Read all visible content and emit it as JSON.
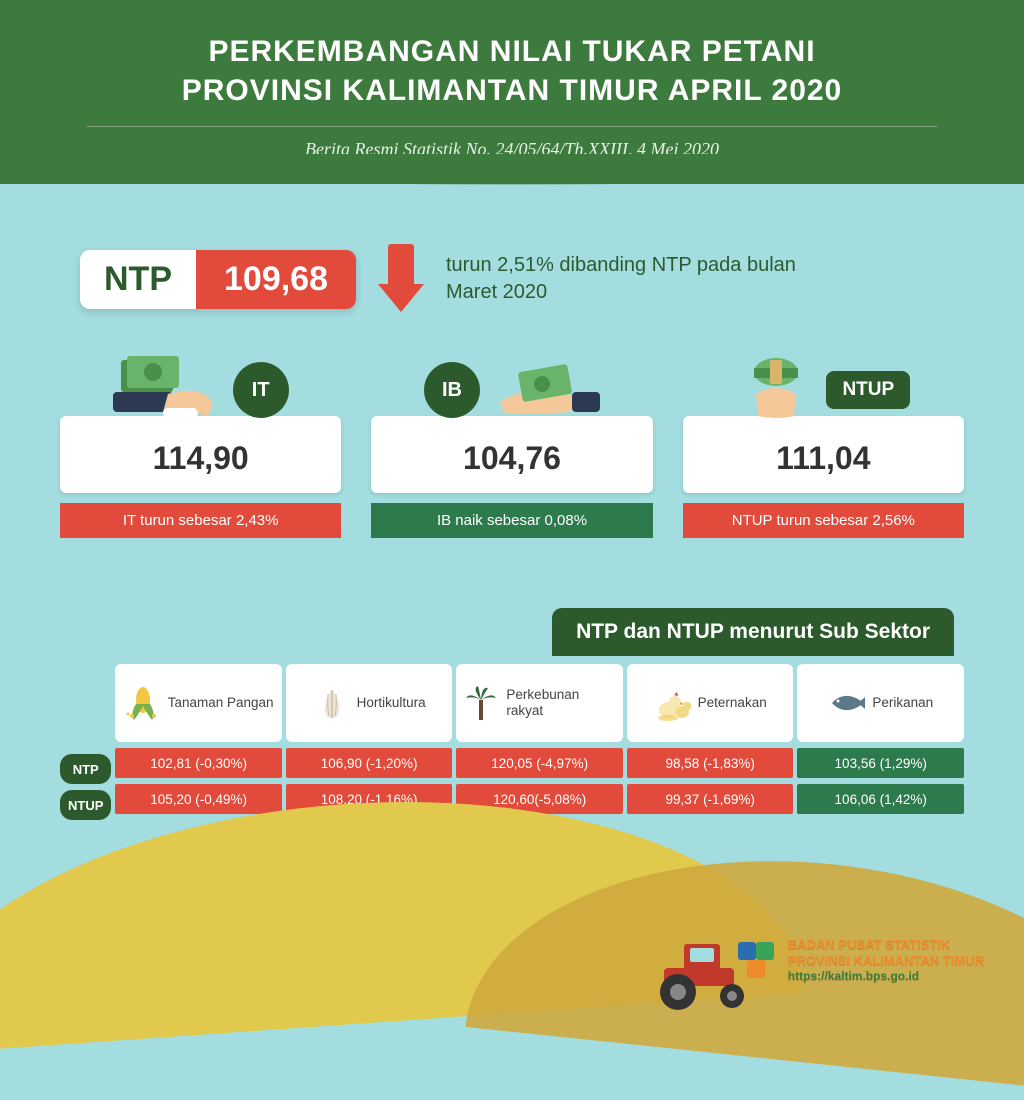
{
  "header": {
    "title_line1": "PERKEMBANGAN NILAI TUKAR PETANI",
    "title_line2": "PROVINSI KALIMANTAN TIMUR APRIL 2020",
    "subtitle": "Berita Resmi Statistik No. 24/05/64/Th.XXIII, 4 Mei 2020",
    "bg_color": "#3d7a3d",
    "title_color": "#ffffff",
    "title_fontsize": 30,
    "subtitle_fontsize": 18
  },
  "ntp": {
    "label": "NTP",
    "value": "109,68",
    "desc": "turun 2,51% dibanding NTP pada bulan Maret 2020",
    "label_bg": "#ffffff",
    "label_color": "#2d5a2d",
    "value_bg": "#e24a3b",
    "value_color": "#ffffff",
    "arrow_color": "#e24a3b",
    "desc_color": "#2d5a2d"
  },
  "cards": [
    {
      "tag": "IT",
      "tag_shape": "circle",
      "value": "114,90",
      "note": "IT turun sebesar 2,43%",
      "note_bg": "#e24a3b",
      "icon": "hand-give"
    },
    {
      "tag": "IB",
      "tag_shape": "circle",
      "value": "104,76",
      "note": "IB naik sebesar 0,08%",
      "note_bg": "#2d7a4d",
      "icon": "hand-receive"
    },
    {
      "tag": "NTUP",
      "tag_shape": "pill",
      "value": "111,04",
      "note": "NTUP turun sebesar 2,56%",
      "note_bg": "#e24a3b",
      "icon": "hand-roll"
    }
  ],
  "subsector": {
    "header": "NTP dan NTUP menurut Sub Sektor",
    "header_bg": "#2d5a2d",
    "row_labels": [
      "NTP",
      "NTUP"
    ],
    "columns": [
      {
        "name": "Tanaman Pangan",
        "icon": "corn",
        "ntp": "102,81 (-0,30%)",
        "ntp_bg": "#e24a3b",
        "ntup": "105,20 (-0,49%)",
        "ntup_bg": "#e24a3b"
      },
      {
        "name": "Hortikultura",
        "icon": "garlic",
        "ntp": "106,90 (-1,20%)",
        "ntp_bg": "#e24a3b",
        "ntup": "108,20 (-1,16%)",
        "ntup_bg": "#e24a3b"
      },
      {
        "name": "Perkebunan rakyat",
        "icon": "palm",
        "ntp": "120,05 (-4,97%)",
        "ntp_bg": "#e24a3b",
        "ntup": "120,60(-5,08%)",
        "ntup_bg": "#e24a3b"
      },
      {
        "name": "Peternakan",
        "icon": "chicken",
        "ntp": "98,58 (-1,83%)",
        "ntp_bg": "#e24a3b",
        "ntup": "99,37 (-1,69%)",
        "ntup_bg": "#e24a3b"
      },
      {
        "name": "Perikanan",
        "icon": "fish",
        "ntp": "103,56 (1,29%)",
        "ntp_bg": "#2d7a4d",
        "ntup": "106,06 (1,42%)",
        "ntup_bg": "#2d7a4d"
      }
    ]
  },
  "footer": {
    "org1": "BADAN PUSAT STATISTIK",
    "org2": "PROVINSI KALIMANTAN TIMUR",
    "url": "https://kaltim.bps.go.id",
    "text_color": "#ef8a2b"
  },
  "palette": {
    "page_bg": "#a3dde0",
    "dark_green": "#2d5a2d",
    "red": "#e24a3b",
    "green": "#2d7a4d",
    "white": "#ffffff",
    "hill1": "#e0c94d",
    "hill2": "#cfa93e"
  }
}
